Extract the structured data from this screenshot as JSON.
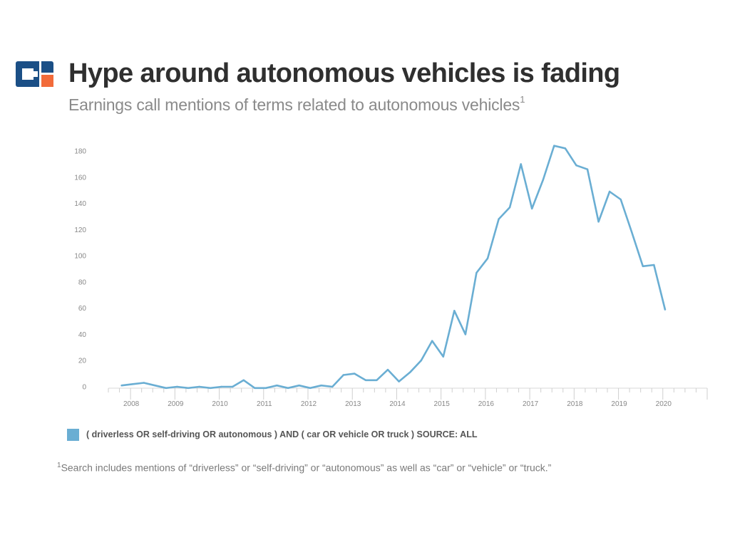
{
  "header": {
    "title": "Hype around autonomous vehicles is fading",
    "subtitle": "Earnings call mentions of terms related to autonomous vehicles",
    "subtitle_marker": "1"
  },
  "colors": {
    "series": "#6aaed3",
    "logo_blue": "#1b4f86",
    "logo_orange": "#f26b3a"
  },
  "logo": {
    "icon": "cb-insights-logo-icon"
  },
  "chart_data": {
    "type": "line",
    "title": "",
    "xlabel": "",
    "ylabel": "",
    "ylim": [
      0,
      190
    ],
    "y_ticks": [
      0,
      20,
      40,
      60,
      80,
      100,
      120,
      140,
      160,
      180
    ],
    "x_tick_labels": [
      "2008",
      "2009",
      "2010",
      "2011",
      "2012",
      "2013",
      "2014",
      "2015",
      "2016",
      "2017",
      "2018",
      "2019",
      "2020"
    ],
    "x_tick_positions": [
      2008,
      2009,
      2010,
      2011,
      2012,
      2013,
      2014,
      2015,
      2016,
      2017,
      2018,
      2019,
      2020
    ],
    "x_range": [
      2007.5,
      2021.0
    ],
    "grid": false,
    "series": [
      {
        "name": "( driverless OR self-driving OR autonomous ) AND ( car OR vehicle OR truck ) SOURCE: ALL",
        "x": [
          2007.8,
          2008.05,
          2008.3,
          2008.55,
          2008.8,
          2009.05,
          2009.3,
          2009.55,
          2009.8,
          2010.05,
          2010.3,
          2010.55,
          2010.8,
          2011.05,
          2011.3,
          2011.55,
          2011.8,
          2012.05,
          2012.3,
          2012.55,
          2012.8,
          2013.05,
          2013.3,
          2013.55,
          2013.8,
          2014.05,
          2014.3,
          2014.55,
          2014.8,
          2015.05,
          2015.3,
          2015.55,
          2015.8,
          2016.05,
          2016.3,
          2016.55,
          2016.8,
          2017.05,
          2017.3,
          2017.55,
          2017.8,
          2018.05,
          2018.3,
          2018.55,
          2018.8,
          2019.05,
          2019.3,
          2019.55,
          2019.8,
          2020.05
        ],
        "values": [
          1,
          2,
          3,
          1,
          -1,
          0,
          -1,
          0,
          -1,
          0,
          0,
          5,
          -1,
          -1,
          1,
          -1,
          1,
          -1,
          1,
          0,
          9,
          10,
          5,
          5,
          13,
          4,
          11,
          20,
          35,
          23,
          58,
          40,
          87,
          98,
          128,
          137,
          170,
          136,
          158,
          184,
          182,
          169,
          166,
          126,
          149,
          143,
          118,
          92,
          93,
          59
        ]
      }
    ]
  },
  "legend": {
    "label": "( driverless OR self-driving OR autonomous ) AND ( car OR vehicle OR truck ) SOURCE: ALL"
  },
  "footnote": {
    "marker": "1",
    "text": "Search includes mentions of “driverless” or “self-driving” or “autonomous” as well as “car” or “vehicle” or “truck.”"
  }
}
